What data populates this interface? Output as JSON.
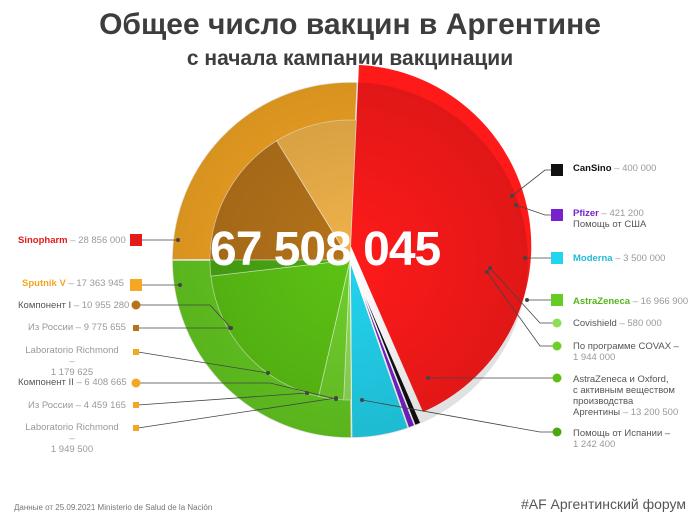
{
  "title": "Общее число вакцин в Аргентине",
  "subtitle": "с начала кампании вакцинации",
  "total": "67 508 045",
  "footnote": "Данные от 25.09.2021 Ministerio de Salud de la Nación",
  "brand": "#AF Аргентинский форум",
  "chart_data": {
    "type": "pie",
    "total": 67508045,
    "slices": [
      {
        "name": "Sinopharm",
        "value": 28856000,
        "color": "#ff1a1a"
      },
      {
        "name": "CanSino",
        "value": 400000,
        "color": "#111111"
      },
      {
        "name": "Pfizer",
        "value": 421200,
        "color": "#7722cc",
        "note": "Помощь от США"
      },
      {
        "name": "Moderna",
        "value": 3500000,
        "color": "#22d4ee"
      },
      {
        "name": "AstraZeneca",
        "value": 16966900,
        "color": "#66cc22"
      },
      {
        "name": "Sputnik V",
        "value": 17363945,
        "color": "#f5a623"
      }
    ],
    "sub_slices": {
      "AstraZeneca": [
        {
          "name": "Covishield",
          "value": 580000
        },
        {
          "name": "По программе COVAX",
          "value": 1944000
        },
        {
          "name": "AstraZeneca и Oxford, с активным веществом производства Аргентины",
          "value": 13200500
        },
        {
          "name": "Помощь от Испании",
          "value": 1242400
        }
      ],
      "Sputnik V": [
        {
          "name": "Компонент I",
          "value": 10955280
        },
        {
          "name": "Из России",
          "value": 9775655
        },
        {
          "name": "Laboratorio Richmond",
          "value": 1179625
        },
        {
          "name": "Компонент II",
          "value": 6408665
        },
        {
          "name": "Из России",
          "value": 4459165
        },
        {
          "name": "Laboratorio Richmond",
          "value": 1949500
        }
      ]
    }
  },
  "labels": {
    "sinopharm": {
      "name": "Sinopharm",
      "value": "– 28 856 000"
    },
    "cansino": {
      "name": "CanSino",
      "value": "– 400 000"
    },
    "pfizer": {
      "name": "Pfizer",
      "value": "– 421 200",
      "note": "Помощь от США"
    },
    "moderna": {
      "name": "Moderna",
      "value": "– 3 500 000"
    },
    "astrazeneca": {
      "name": "AstraZeneca",
      "value": "– 16 966 900"
    },
    "covishield": {
      "name": "Covishield",
      "value": "– 580 000"
    },
    "covax": {
      "name": "По программе COVAX –",
      "value": "1 944 000"
    },
    "az_oxford": {
      "name1": "AstraZeneca и Oxford,",
      "name2": "с активным веществом",
      "name3": "производства",
      "name4": "Аргентины",
      "value": "– 13 200 500"
    },
    "spain": {
      "name": "Помощь от Испании –",
      "value": "1 242 400"
    },
    "sputnik": {
      "name": "Sputnik V",
      "value": "– 17 363 945"
    },
    "comp1": {
      "name": "Компонент I",
      "value": "– 10 955 280"
    },
    "russia1": {
      "name": "Из России",
      "value": "– 9 775 655"
    },
    "richmond1": {
      "name": "Laboratorio Richmond –",
      "value": "1 179 625"
    },
    "comp2": {
      "name": "Компонент II",
      "value": "– 6 408 665"
    },
    "russia2": {
      "name": "Из России",
      "value": "– 4 459 165"
    },
    "richmond2": {
      "name": "Laboratorio Richmond –",
      "value": "1 949 500"
    }
  }
}
